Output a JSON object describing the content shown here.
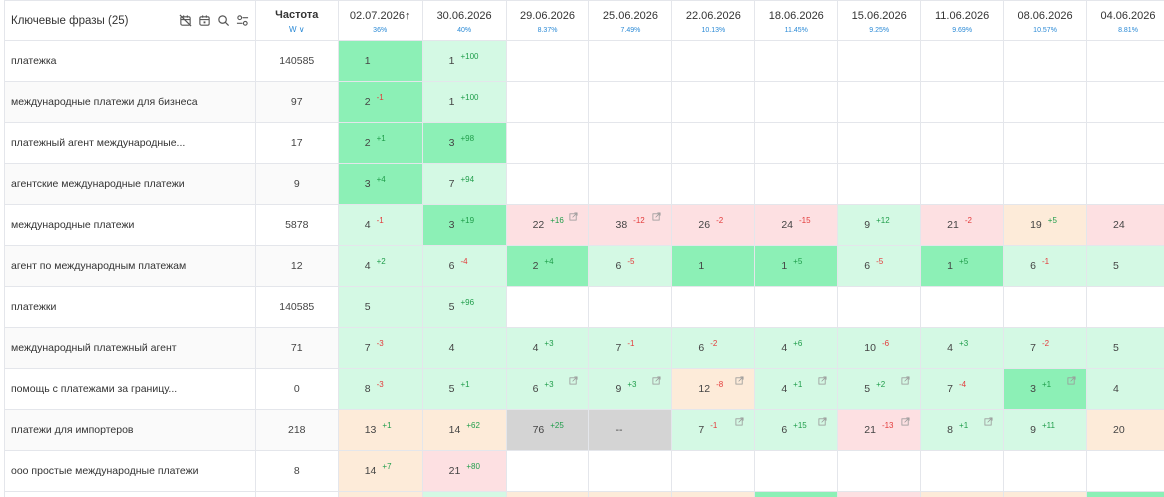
{
  "header": {
    "phrases_title": "Ключевые фразы (25)",
    "freq_title": "Частота",
    "freq_sub": "W ∨",
    "dates": [
      {
        "date": "02.07.2026",
        "arrow": "↑",
        "pct": "36%"
      },
      {
        "date": "30.06.2026",
        "arrow": "",
        "pct": "40%"
      },
      {
        "date": "29.06.2026",
        "arrow": "",
        "pct": "8.37%"
      },
      {
        "date": "25.06.2026",
        "arrow": "",
        "pct": "7.49%"
      },
      {
        "date": "22.06.2026",
        "arrow": "",
        "pct": "10.13%"
      },
      {
        "date": "18.06.2026",
        "arrow": "",
        "pct": "11.45%"
      },
      {
        "date": "15.06.2026",
        "arrow": "",
        "pct": "9.25%"
      },
      {
        "date": "11.06.2026",
        "arrow": "",
        "pct": "9.69%"
      },
      {
        "date": "08.06.2026",
        "arrow": "",
        "pct": "10.57%"
      },
      {
        "date": "04.06.2026",
        "arrow": "",
        "pct": "8.81%"
      }
    ],
    "icons": [
      "calendar-off-icon",
      "calendar-icon",
      "search-icon",
      "settings-sliders-icon"
    ]
  },
  "rows": [
    {
      "phrase": "платежка",
      "freq": "140585",
      "cells": [
        {
          "v": "1",
          "d": "",
          "c": "green1"
        },
        {
          "v": "1",
          "d": "+100",
          "c": "green3"
        },
        null,
        null,
        null,
        null,
        null,
        null,
        null,
        null
      ]
    },
    {
      "phrase": "международные платежи для бизнеса",
      "freq": "97",
      "cells": [
        {
          "v": "2",
          "d": "-1",
          "c": "green1"
        },
        {
          "v": "1",
          "d": "+100",
          "c": "green3"
        },
        null,
        null,
        null,
        null,
        null,
        null,
        null,
        null
      ]
    },
    {
      "phrase": "платежный агент международные...",
      "freq": "17",
      "cells": [
        {
          "v": "2",
          "d": "+1",
          "c": "green1"
        },
        {
          "v": "3",
          "d": "+98",
          "c": "green1"
        },
        null,
        null,
        null,
        null,
        null,
        null,
        null,
        null
      ]
    },
    {
      "phrase": "агентские международные платежи",
      "freq": "9",
      "cells": [
        {
          "v": "3",
          "d": "+4",
          "c": "green1"
        },
        {
          "v": "7",
          "d": "+94",
          "c": "green3"
        },
        null,
        null,
        null,
        null,
        null,
        null,
        null,
        null
      ]
    },
    {
      "phrase": "международные платежи",
      "freq": "5878",
      "cells": [
        {
          "v": "4",
          "d": "-1",
          "c": "green3"
        },
        {
          "v": "3",
          "d": "+19",
          "c": "green1"
        },
        {
          "v": "22",
          "d": "+16",
          "c": "pink",
          "ext": true
        },
        {
          "v": "38",
          "d": "-12",
          "c": "pink",
          "ext": true
        },
        {
          "v": "26",
          "d": "-2",
          "c": "pink"
        },
        {
          "v": "24",
          "d": "-15",
          "c": "pink"
        },
        {
          "v": "9",
          "d": "+12",
          "c": "green3"
        },
        {
          "v": "21",
          "d": "-2",
          "c": "pink"
        },
        {
          "v": "19",
          "d": "+5",
          "c": "peach"
        },
        {
          "v": "24",
          "d": "",
          "c": "pink"
        }
      ]
    },
    {
      "phrase": "агент по международным платежам",
      "freq": "12",
      "cells": [
        {
          "v": "4",
          "d": "+2",
          "c": "green3"
        },
        {
          "v": "6",
          "d": "-4",
          "c": "green3"
        },
        {
          "v": "2",
          "d": "+4",
          "c": "green1"
        },
        {
          "v": "6",
          "d": "-5",
          "c": "green3"
        },
        {
          "v": "1",
          "d": "",
          "c": "green1"
        },
        {
          "v": "1",
          "d": "+5",
          "c": "green1"
        },
        {
          "v": "6",
          "d": "-5",
          "c": "green3"
        },
        {
          "v": "1",
          "d": "+5",
          "c": "green1"
        },
        {
          "v": "6",
          "d": "-1",
          "c": "green3"
        },
        {
          "v": "5",
          "d": "",
          "c": "green3"
        }
      ]
    },
    {
      "phrase": "платежки",
      "freq": "140585",
      "cells": [
        {
          "v": "5",
          "d": "",
          "c": "green3"
        },
        {
          "v": "5",
          "d": "+96",
          "c": "green3"
        },
        null,
        null,
        null,
        null,
        null,
        null,
        null,
        null
      ]
    },
    {
      "phrase": "международный платежный агент",
      "freq": "71",
      "cells": [
        {
          "v": "7",
          "d": "-3",
          "c": "green3"
        },
        {
          "v": "4",
          "d": "",
          "c": "green3"
        },
        {
          "v": "4",
          "d": "+3",
          "c": "green3"
        },
        {
          "v": "7",
          "d": "-1",
          "c": "green3"
        },
        {
          "v": "6",
          "d": "-2",
          "c": "green3"
        },
        {
          "v": "4",
          "d": "+6",
          "c": "green3"
        },
        {
          "v": "10",
          "d": "-6",
          "c": "green3"
        },
        {
          "v": "4",
          "d": "+3",
          "c": "green3"
        },
        {
          "v": "7",
          "d": "-2",
          "c": "green3"
        },
        {
          "v": "5",
          "d": "",
          "c": "green3"
        }
      ]
    },
    {
      "phrase": "помощь с платежами за границу...",
      "freq": "0",
      "cells": [
        {
          "v": "8",
          "d": "-3",
          "c": "green3"
        },
        {
          "v": "5",
          "d": "+1",
          "c": "green3"
        },
        {
          "v": "6",
          "d": "+3",
          "c": "green3",
          "ext": true
        },
        {
          "v": "9",
          "d": "+3",
          "c": "green3",
          "ext": true
        },
        {
          "v": "12",
          "d": "-8",
          "c": "peach",
          "ext": true
        },
        {
          "v": "4",
          "d": "+1",
          "c": "green3",
          "ext": true
        },
        {
          "v": "5",
          "d": "+2",
          "c": "green3",
          "ext": true
        },
        {
          "v": "7",
          "d": "-4",
          "c": "green3"
        },
        {
          "v": "3",
          "d": "+1",
          "c": "green1",
          "ext": true
        },
        {
          "v": "4",
          "d": "",
          "c": "green3"
        }
      ]
    },
    {
      "phrase": "платежи для импортеров",
      "freq": "218",
      "cells": [
        {
          "v": "13",
          "d": "+1",
          "c": "peach"
        },
        {
          "v": "14",
          "d": "+62",
          "c": "peach"
        },
        {
          "v": "76",
          "d": "+25",
          "c": "gray"
        },
        {
          "v": "--",
          "d": "",
          "c": "gray"
        },
        {
          "v": "7",
          "d": "-1",
          "c": "green3",
          "ext": true
        },
        {
          "v": "6",
          "d": "+15",
          "c": "green3",
          "ext": true
        },
        {
          "v": "21",
          "d": "-13",
          "c": "pink",
          "ext": true
        },
        {
          "v": "8",
          "d": "+1",
          "c": "green3",
          "ext": true
        },
        {
          "v": "9",
          "d": "+11",
          "c": "green3"
        },
        {
          "v": "20",
          "d": "",
          "c": "peach"
        }
      ]
    },
    {
      "phrase": "ооо простые международные платежи",
      "freq": "8",
      "cells": [
        {
          "v": "14",
          "d": "+7",
          "c": "peach"
        },
        {
          "v": "21",
          "d": "+80",
          "c": "pink"
        },
        null,
        null,
        null,
        null,
        null,
        null,
        null,
        null
      ]
    }
  ],
  "colors": {
    "green1": "#8cf0b6",
    "green2": "#b4f4cf",
    "green3": "#d4f9e4",
    "pink": "#fde0e2",
    "peach": "#fdebd9",
    "gray": "#d4d4d4",
    "accent": "#2b8ad6",
    "up": "#1f9d4a",
    "down": "#e33b3b"
  }
}
